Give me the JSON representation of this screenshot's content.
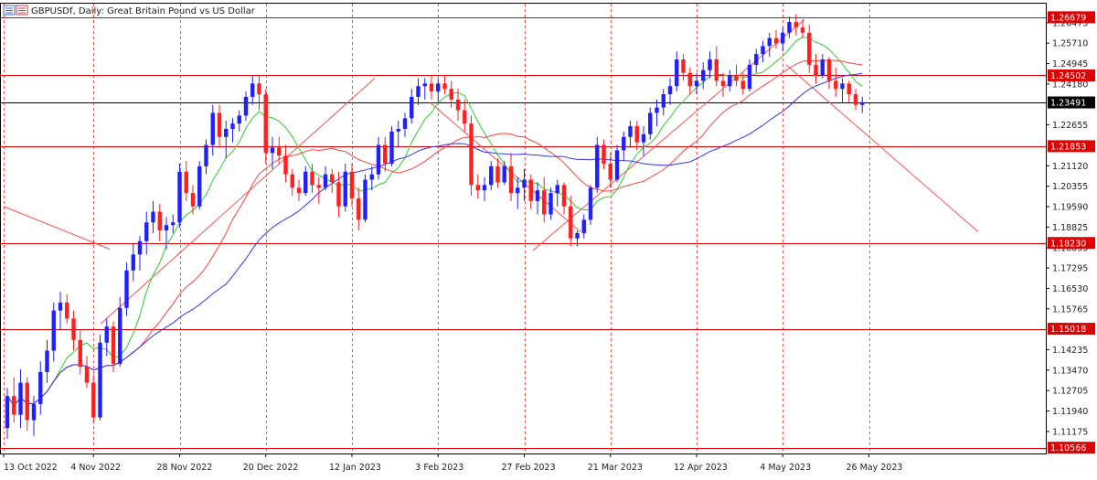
{
  "window": {
    "symbol_title": "GBPUSDf, Daily:  Great Britain Pound vs US Dollar",
    "menu_icon": "chart-menu-icon"
  },
  "colors": {
    "bull": "#1f1fff",
    "bear": "#ff1f1f",
    "ma_fast": "#2ecc2e",
    "ma_mid": "#ff4040",
    "ma_slow": "#3333ff",
    "level": "#e00000",
    "current": "#000000"
  },
  "price_axis": {
    "ticks": [
      "1.26475",
      "1.25710",
      "1.24945",
      "1.24180",
      "1.22655",
      "1.21120",
      "1.20355",
      "1.19590",
      "1.18825",
      "1.18055",
      "1.17295",
      "1.16530",
      "1.15765",
      "1.14235",
      "1.13470",
      "1.12705",
      "1.11940",
      "1.11175"
    ],
    "level_labels": [
      {
        "label": "1.26679",
        "value": 1.26679
      },
      {
        "label": "1.24502",
        "value": 1.24502
      },
      {
        "label": "1.21853",
        "value": 1.21853
      },
      {
        "label": "1.18230",
        "value": 1.1823
      },
      {
        "label": "1.15018",
        "value": 1.15018
      },
      {
        "label": "1.10566",
        "value": 1.10566
      }
    ],
    "current_price": {
      "label": "1.23491",
      "value": 1.23491
    }
  },
  "time_axis": {
    "labels": [
      "13 Oct 2022",
      "4 Nov 2022",
      "28 Nov 2022",
      "20 Dec 2022",
      "12 Jan 2023",
      "3 Feb 2023",
      "27 Feb 2023",
      "21 Mar 2023",
      "12 Apr 2023",
      "4 May 2023",
      "26 May 2023"
    ]
  },
  "chart_data": {
    "type": "candlestick",
    "symbol": "GBPUSDf",
    "timeframe": "Daily",
    "ylim": [
      1.1035,
      1.2712
    ],
    "candles": [
      {
        "o": 1.113,
        "h": 1.128,
        "l": 1.109,
        "c": 1.125
      },
      {
        "o": 1.125,
        "h": 1.132,
        "l": 1.115,
        "c": 1.118
      },
      {
        "o": 1.118,
        "h": 1.135,
        "l": 1.113,
        "c": 1.13
      },
      {
        "o": 1.13,
        "h": 1.132,
        "l": 1.112,
        "c": 1.116
      },
      {
        "o": 1.116,
        "h": 1.125,
        "l": 1.11,
        "c": 1.122
      },
      {
        "o": 1.122,
        "h": 1.138,
        "l": 1.118,
        "c": 1.134
      },
      {
        "o": 1.134,
        "h": 1.146,
        "l": 1.13,
        "c": 1.142
      },
      {
        "o": 1.142,
        "h": 1.16,
        "l": 1.138,
        "c": 1.157
      },
      {
        "o": 1.157,
        "h": 1.164,
        "l": 1.15,
        "c": 1.16
      },
      {
        "o": 1.16,
        "h": 1.163,
        "l": 1.152,
        "c": 1.154
      },
      {
        "o": 1.154,
        "h": 1.157,
        "l": 1.142,
        "c": 1.146
      },
      {
        "o": 1.146,
        "h": 1.15,
        "l": 1.133,
        "c": 1.136
      },
      {
        "o": 1.136,
        "h": 1.14,
        "l": 1.128,
        "c": 1.13
      },
      {
        "o": 1.13,
        "h": 1.133,
        "l": 1.115,
        "c": 1.117
      },
      {
        "o": 1.117,
        "h": 1.148,
        "l": 1.116,
        "c": 1.145
      },
      {
        "o": 1.145,
        "h": 1.154,
        "l": 1.14,
        "c": 1.151
      },
      {
        "o": 1.151,
        "h": 1.153,
        "l": 1.134,
        "c": 1.137
      },
      {
        "o": 1.137,
        "h": 1.162,
        "l": 1.136,
        "c": 1.158
      },
      {
        "o": 1.158,
        "h": 1.175,
        "l": 1.155,
        "c": 1.172
      },
      {
        "o": 1.172,
        "h": 1.182,
        "l": 1.168,
        "c": 1.178
      },
      {
        "o": 1.178,
        "h": 1.185,
        "l": 1.172,
        "c": 1.183
      },
      {
        "o": 1.183,
        "h": 1.194,
        "l": 1.178,
        "c": 1.19
      },
      {
        "o": 1.19,
        "h": 1.198,
        "l": 1.186,
        "c": 1.194
      },
      {
        "o": 1.194,
        "h": 1.197,
        "l": 1.183,
        "c": 1.187
      },
      {
        "o": 1.187,
        "h": 1.192,
        "l": 1.18,
        "c": 1.189
      },
      {
        "o": 1.189,
        "h": 1.193,
        "l": 1.186,
        "c": 1.19
      },
      {
        "o": 1.19,
        "h": 1.212,
        "l": 1.188,
        "c": 1.209
      },
      {
        "o": 1.209,
        "h": 1.213,
        "l": 1.198,
        "c": 1.201
      },
      {
        "o": 1.201,
        "h": 1.204,
        "l": 1.193,
        "c": 1.196
      },
      {
        "o": 1.196,
        "h": 1.213,
        "l": 1.195,
        "c": 1.211
      },
      {
        "o": 1.211,
        "h": 1.221,
        "l": 1.208,
        "c": 1.219
      },
      {
        "o": 1.219,
        "h": 1.234,
        "l": 1.215,
        "c": 1.231
      },
      {
        "o": 1.231,
        "h": 1.234,
        "l": 1.218,
        "c": 1.222
      },
      {
        "o": 1.222,
        "h": 1.228,
        "l": 1.214,
        "c": 1.225
      },
      {
        "o": 1.225,
        "h": 1.229,
        "l": 1.22,
        "c": 1.227
      },
      {
        "o": 1.227,
        "h": 1.232,
        "l": 1.224,
        "c": 1.23
      },
      {
        "o": 1.23,
        "h": 1.239,
        "l": 1.228,
        "c": 1.237
      },
      {
        "o": 1.237,
        "h": 1.245,
        "l": 1.234,
        "c": 1.242
      },
      {
        "o": 1.242,
        "h": 1.245,
        "l": 1.232,
        "c": 1.238
      },
      {
        "o": 1.238,
        "h": 1.24,
        "l": 1.212,
        "c": 1.216
      },
      {
        "o": 1.216,
        "h": 1.222,
        "l": 1.21,
        "c": 1.218
      },
      {
        "o": 1.218,
        "h": 1.222,
        "l": 1.212,
        "c": 1.215
      },
      {
        "o": 1.215,
        "h": 1.219,
        "l": 1.205,
        "c": 1.208
      },
      {
        "o": 1.208,
        "h": 1.21,
        "l": 1.2,
        "c": 1.203
      },
      {
        "o": 1.203,
        "h": 1.206,
        "l": 1.198,
        "c": 1.201
      },
      {
        "o": 1.201,
        "h": 1.211,
        "l": 1.2,
        "c": 1.209
      },
      {
        "o": 1.209,
        "h": 1.212,
        "l": 1.201,
        "c": 1.204
      },
      {
        "o": 1.204,
        "h": 1.207,
        "l": 1.197,
        "c": 1.203
      },
      {
        "o": 1.203,
        "h": 1.211,
        "l": 1.202,
        "c": 1.208
      },
      {
        "o": 1.208,
        "h": 1.21,
        "l": 1.201,
        "c": 1.205
      },
      {
        "o": 1.205,
        "h": 1.209,
        "l": 1.192,
        "c": 1.196
      },
      {
        "o": 1.196,
        "h": 1.212,
        "l": 1.194,
        "c": 1.209
      },
      {
        "o": 1.209,
        "h": 1.212,
        "l": 1.196,
        "c": 1.199
      },
      {
        "o": 1.199,
        "h": 1.203,
        "l": 1.187,
        "c": 1.191
      },
      {
        "o": 1.191,
        "h": 1.208,
        "l": 1.19,
        "c": 1.206
      },
      {
        "o": 1.206,
        "h": 1.211,
        "l": 1.202,
        "c": 1.208
      },
      {
        "o": 1.208,
        "h": 1.222,
        "l": 1.206,
        "c": 1.219
      },
      {
        "o": 1.219,
        "h": 1.222,
        "l": 1.209,
        "c": 1.212
      },
      {
        "o": 1.212,
        "h": 1.226,
        "l": 1.211,
        "c": 1.224
      },
      {
        "o": 1.224,
        "h": 1.228,
        "l": 1.218,
        "c": 1.225
      },
      {
        "o": 1.225,
        "h": 1.231,
        "l": 1.222,
        "c": 1.229
      },
      {
        "o": 1.229,
        "h": 1.24,
        "l": 1.227,
        "c": 1.237
      },
      {
        "o": 1.237,
        "h": 1.244,
        "l": 1.234,
        "c": 1.241
      },
      {
        "o": 1.241,
        "h": 1.244,
        "l": 1.236,
        "c": 1.242
      },
      {
        "o": 1.242,
        "h": 1.245,
        "l": 1.236,
        "c": 1.239
      },
      {
        "o": 1.239,
        "h": 1.244,
        "l": 1.235,
        "c": 1.242
      },
      {
        "o": 1.242,
        "h": 1.245,
        "l": 1.238,
        "c": 1.24
      },
      {
        "o": 1.24,
        "h": 1.243,
        "l": 1.233,
        "c": 1.236
      },
      {
        "o": 1.236,
        "h": 1.24,
        "l": 1.228,
        "c": 1.232
      },
      {
        "o": 1.232,
        "h": 1.236,
        "l": 1.224,
        "c": 1.227
      },
      {
        "o": 1.227,
        "h": 1.23,
        "l": 1.2,
        "c": 1.204
      },
      {
        "o": 1.204,
        "h": 1.208,
        "l": 1.199,
        "c": 1.202
      },
      {
        "o": 1.202,
        "h": 1.207,
        "l": 1.198,
        "c": 1.204
      },
      {
        "o": 1.204,
        "h": 1.213,
        "l": 1.202,
        "c": 1.211
      },
      {
        "o": 1.211,
        "h": 1.214,
        "l": 1.203,
        "c": 1.205
      },
      {
        "o": 1.205,
        "h": 1.213,
        "l": 1.204,
        "c": 1.211
      },
      {
        "o": 1.211,
        "h": 1.216,
        "l": 1.198,
        "c": 1.201
      },
      {
        "o": 1.201,
        "h": 1.207,
        "l": 1.195,
        "c": 1.203
      },
      {
        "o": 1.203,
        "h": 1.21,
        "l": 1.198,
        "c": 1.206
      },
      {
        "o": 1.206,
        "h": 1.208,
        "l": 1.195,
        "c": 1.198
      },
      {
        "o": 1.198,
        "h": 1.205,
        "l": 1.193,
        "c": 1.202
      },
      {
        "o": 1.202,
        "h": 1.207,
        "l": 1.19,
        "c": 1.193
      },
      {
        "o": 1.193,
        "h": 1.203,
        "l": 1.191,
        "c": 1.201
      },
      {
        "o": 1.201,
        "h": 1.206,
        "l": 1.196,
        "c": 1.204
      },
      {
        "o": 1.204,
        "h": 1.205,
        "l": 1.193,
        "c": 1.196
      },
      {
        "o": 1.196,
        "h": 1.2,
        "l": 1.181,
        "c": 1.184
      },
      {
        "o": 1.184,
        "h": 1.187,
        "l": 1.181,
        "c": 1.186
      },
      {
        "o": 1.186,
        "h": 1.193,
        "l": 1.184,
        "c": 1.191
      },
      {
        "o": 1.191,
        "h": 1.204,
        "l": 1.189,
        "c": 1.203
      },
      {
        "o": 1.203,
        "h": 1.222,
        "l": 1.201,
        "c": 1.219
      },
      {
        "o": 1.219,
        "h": 1.221,
        "l": 1.21,
        "c": 1.212
      },
      {
        "o": 1.212,
        "h": 1.216,
        "l": 1.203,
        "c": 1.206
      },
      {
        "o": 1.206,
        "h": 1.219,
        "l": 1.205,
        "c": 1.217
      },
      {
        "o": 1.217,
        "h": 1.224,
        "l": 1.213,
        "c": 1.222
      },
      {
        "o": 1.222,
        "h": 1.228,
        "l": 1.218,
        "c": 1.226
      },
      {
        "o": 1.226,
        "h": 1.228,
        "l": 1.217,
        "c": 1.22
      },
      {
        "o": 1.22,
        "h": 1.226,
        "l": 1.215,
        "c": 1.223
      },
      {
        "o": 1.223,
        "h": 1.233,
        "l": 1.221,
        "c": 1.231
      },
      {
        "o": 1.231,
        "h": 1.236,
        "l": 1.226,
        "c": 1.233
      },
      {
        "o": 1.233,
        "h": 1.24,
        "l": 1.23,
        "c": 1.238
      },
      {
        "o": 1.238,
        "h": 1.244,
        "l": 1.234,
        "c": 1.241
      },
      {
        "o": 1.241,
        "h": 1.254,
        "l": 1.239,
        "c": 1.251
      },
      {
        "o": 1.251,
        "h": 1.253,
        "l": 1.243,
        "c": 1.246
      },
      {
        "o": 1.246,
        "h": 1.248,
        "l": 1.238,
        "c": 1.241
      },
      {
        "o": 1.241,
        "h": 1.246,
        "l": 1.238,
        "c": 1.243
      },
      {
        "o": 1.243,
        "h": 1.25,
        "l": 1.24,
        "c": 1.247
      },
      {
        "o": 1.247,
        "h": 1.254,
        "l": 1.244,
        "c": 1.251
      },
      {
        "o": 1.251,
        "h": 1.256,
        "l": 1.241,
        "c": 1.243
      },
      {
        "o": 1.243,
        "h": 1.246,
        "l": 1.237,
        "c": 1.241
      },
      {
        "o": 1.241,
        "h": 1.247,
        "l": 1.239,
        "c": 1.245
      },
      {
        "o": 1.245,
        "h": 1.249,
        "l": 1.241,
        "c": 1.243
      },
      {
        "o": 1.243,
        "h": 1.246,
        "l": 1.238,
        "c": 1.24
      },
      {
        "o": 1.24,
        "h": 1.251,
        "l": 1.239,
        "c": 1.249
      },
      {
        "o": 1.249,
        "h": 1.255,
        "l": 1.246,
        "c": 1.253
      },
      {
        "o": 1.253,
        "h": 1.258,
        "l": 1.25,
        "c": 1.256
      },
      {
        "o": 1.256,
        "h": 1.261,
        "l": 1.252,
        "c": 1.259
      },
      {
        "o": 1.259,
        "h": 1.262,
        "l": 1.255,
        "c": 1.257
      },
      {
        "o": 1.257,
        "h": 1.263,
        "l": 1.254,
        "c": 1.261
      },
      {
        "o": 1.261,
        "h": 1.267,
        "l": 1.259,
        "c": 1.265
      },
      {
        "o": 1.265,
        "h": 1.268,
        "l": 1.26,
        "c": 1.263
      },
      {
        "o": 1.263,
        "h": 1.266,
        "l": 1.259,
        "c": 1.261
      },
      {
        "o": 1.261,
        "h": 1.264,
        "l": 1.246,
        "c": 1.249
      },
      {
        "o": 1.249,
        "h": 1.253,
        "l": 1.242,
        "c": 1.245
      },
      {
        "o": 1.245,
        "h": 1.253,
        "l": 1.244,
        "c": 1.251
      },
      {
        "o": 1.251,
        "h": 1.252,
        "l": 1.24,
        "c": 1.243
      },
      {
        "o": 1.243,
        "h": 1.248,
        "l": 1.237,
        "c": 1.24
      },
      {
        "o": 1.24,
        "h": 1.244,
        "l": 1.235,
        "c": 1.242
      },
      {
        "o": 1.242,
        "h": 1.243,
        "l": 1.235,
        "c": 1.238
      },
      {
        "o": 1.238,
        "h": 1.24,
        "l": 1.232,
        "c": 1.234
      },
      {
        "o": 1.234,
        "h": 1.237,
        "l": 1.231,
        "c": 1.235
      }
    ],
    "moving_averages": [
      {
        "period": 8,
        "color": "#2ecc2e"
      },
      {
        "period": 21,
        "color": "#ff4040"
      },
      {
        "period": 34,
        "color": "#3333ff"
      }
    ],
    "trendlines": [
      {
        "points": [
          [
            "13 Oct 2022",
            1.196
          ],
          [
            "4 Nov 2022",
            1.18
          ]
        ]
      },
      {
        "points": [
          [
            "28 Nov 2022",
            1.153
          ],
          [
            "12 Jan 2023",
            1.244
          ]
        ]
      },
      {
        "points": [
          [
            "27 Feb 2023",
            1.179
          ],
          [
            "4 May 2023",
            1.268
          ]
        ]
      },
      {
        "points": [
          [
            "3 Feb 2023",
            1.235
          ],
          [
            "21 Mar 2023",
            1.187
          ]
        ]
      },
      {
        "points": [
          [
            "26 May 2023",
            1.246
          ],
          [
            "26 May 2023",
            1.187
          ]
        ]
      }
    ]
  }
}
